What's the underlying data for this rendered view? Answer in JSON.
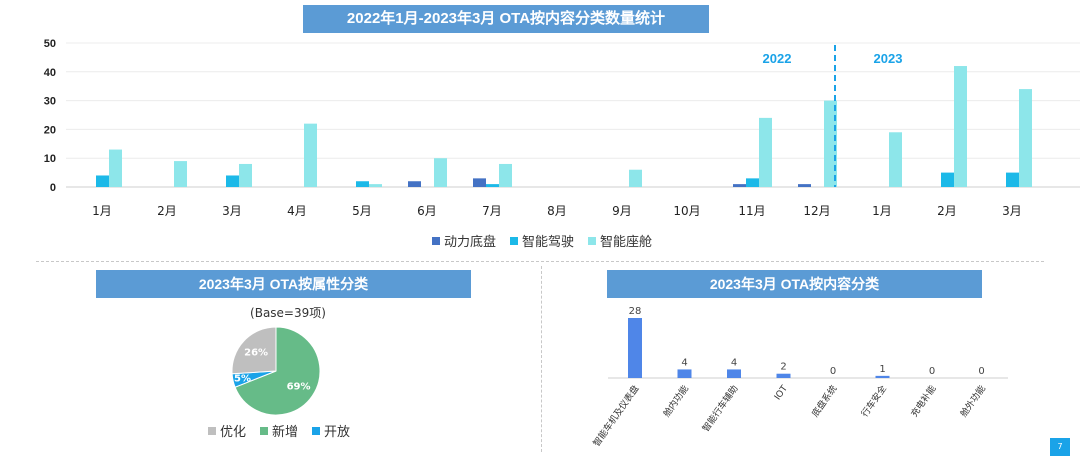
{
  "titles": {
    "top": "2022年1月-2023年3月 OTA按内容分类数量统计",
    "pie": "2023年3月 OTA按属性分类",
    "bar2": "2023年3月 OTA按内容分类"
  },
  "page_number": "7",
  "pie_base": "(Base=39项)",
  "colors": {
    "banner": "#5b9bd5",
    "power": "#4472c4",
    "drive": "#1cb9e8",
    "cabin": "#8de6ea",
    "optimize": "#bfbfbf",
    "new": "#66bb88",
    "open": "#1aa3e8",
    "bar2": "#4f86e8"
  },
  "chart_data": [
    {
      "type": "bar",
      "title": "2022年1月-2023年3月 OTA按内容分类数量统计",
      "categories": [
        "1月",
        "2月",
        "3月",
        "4月",
        "5月",
        "6月",
        "7月",
        "8月",
        "9月",
        "10月",
        "11月",
        "12月",
        "1月",
        "2月",
        "3月"
      ],
      "year_labels": [
        "2022",
        "2023"
      ],
      "ylim": [
        0,
        50
      ],
      "yticks": [
        "0",
        "10",
        "20",
        "30",
        "40",
        "50"
      ],
      "grid": true,
      "legend_position": "bottom",
      "series": [
        {
          "name": "动力底盘",
          "values": [
            0,
            0,
            0,
            0,
            0,
            2,
            3,
            0,
            0,
            0,
            1,
            1,
            0,
            0,
            0
          ]
        },
        {
          "name": "智能驾驶",
          "values": [
            4,
            0,
            4,
            0,
            2,
            0,
            1,
            0,
            0,
            0,
            3,
            0,
            0,
            5,
            5
          ]
        },
        {
          "name": "智能座舱",
          "values": [
            13,
            9,
            8,
            22,
            1,
            10,
            8,
            0,
            6,
            0,
            24,
            30,
            19,
            42,
            34
          ]
        }
      ]
    },
    {
      "type": "pie",
      "title": "2023年3月 OTA按属性分类",
      "labels": [
        "优化",
        "新增",
        "开放"
      ],
      "values": [
        26,
        69,
        5
      ],
      "value_labels": [
        "26%",
        "69%",
        "5%"
      ],
      "legend_position": "bottom"
    },
    {
      "type": "bar",
      "title": "2023年3月 OTA按内容分类",
      "categories": [
        "智能车机及仪表盘",
        "舱内功能",
        "智能行车辅助",
        "IOT",
        "底盘系统",
        "行车安全",
        "充电补能",
        "舱外功能"
      ],
      "values": [
        28,
        4,
        4,
        2,
        0,
        1,
        0,
        0
      ],
      "value_labels": [
        "28",
        "4",
        "4",
        "2",
        "0",
        "1",
        "0",
        "0"
      ]
    }
  ]
}
